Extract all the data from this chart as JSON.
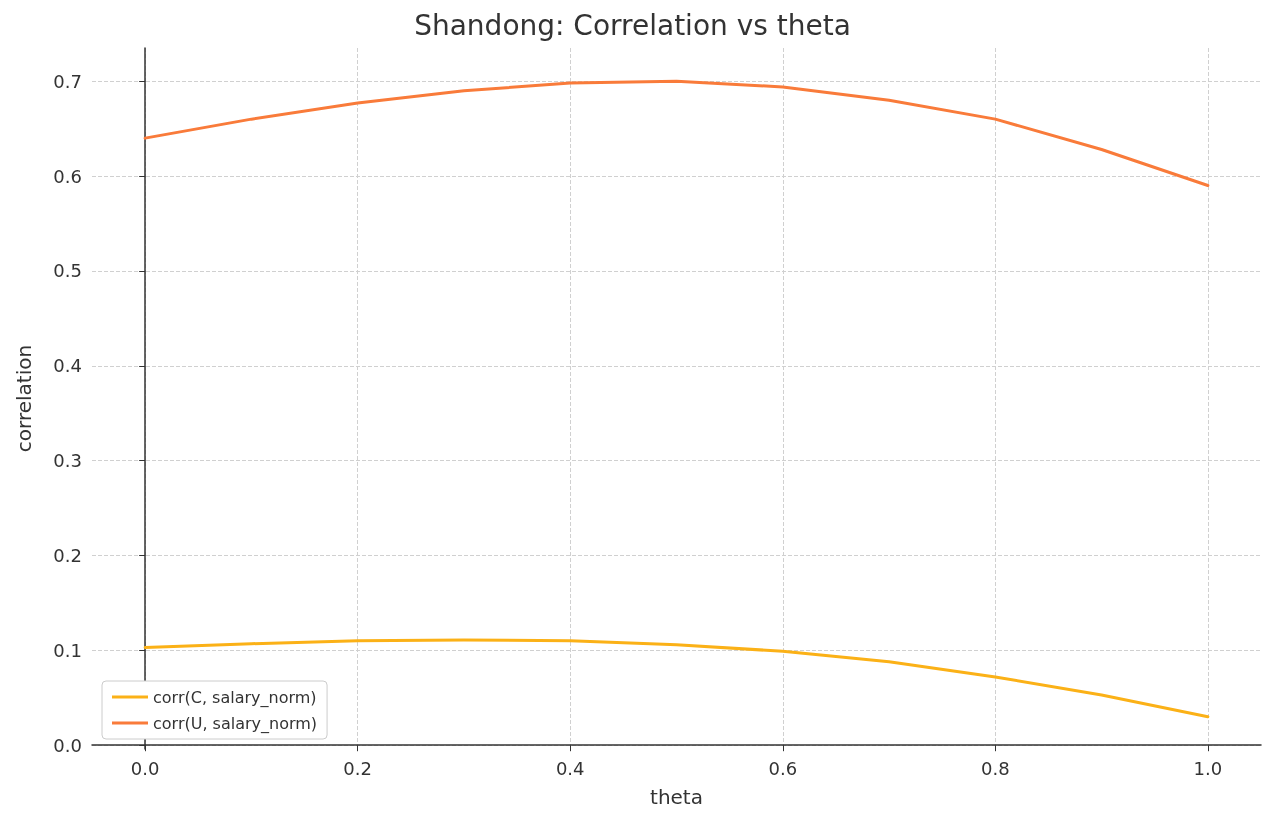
{
  "chart_data": {
    "type": "line",
    "title": "Shandong: Correlation vs theta",
    "xlabel": "theta",
    "ylabel": "correlation",
    "x": [
      0,
      0.1,
      0.2,
      0.3,
      0.4,
      0.5,
      0.6,
      0.7,
      0.8,
      0.9,
      1.0
    ],
    "series": [
      {
        "name": "corr(C, salary_norm)",
        "color": "#fbb117",
        "values": [
          0.103,
          0.107,
          0.11,
          0.111,
          0.11,
          0.106,
          0.099,
          0.088,
          0.072,
          0.053,
          0.03
        ]
      },
      {
        "name": "corr(U, salary_norm)",
        "color": "#f97b3a",
        "values": [
          0.64,
          0.66,
          0.677,
          0.69,
          0.698,
          0.7,
          0.694,
          0.68,
          0.66,
          0.628,
          0.59
        ]
      }
    ],
    "xlim": [
      -0.05,
      1.05
    ],
    "xticks": [
      {
        "value": 0,
        "label": "0.0"
      },
      {
        "value": 0.2,
        "label": "0.2"
      },
      {
        "value": 0.4,
        "label": "0.4"
      },
      {
        "value": 0.6,
        "label": "0.6"
      },
      {
        "value": 0.8,
        "label": "0.8"
      },
      {
        "value": 1.0,
        "label": "1.0"
      }
    ],
    "ylim": [
      -0.004,
      0.735
    ],
    "yticks": [
      {
        "value": 0,
        "label": "0.0"
      },
      {
        "value": 0.1,
        "label": "0.1"
      },
      {
        "value": 0.2,
        "label": "0.2"
      },
      {
        "value": 0.3,
        "label": "0.3"
      },
      {
        "value": 0.4,
        "label": "0.4"
      },
      {
        "value": 0.5,
        "label": "0.5"
      },
      {
        "value": 0.6,
        "label": "0.6"
      },
      {
        "value": 0.7,
        "label": "0.7"
      }
    ],
    "grid": true,
    "legend": "bottom left",
    "marker": "none",
    "line_style": "solid"
  }
}
